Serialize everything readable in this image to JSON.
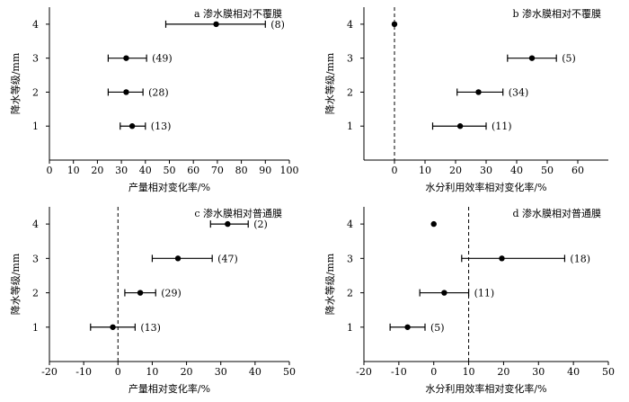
{
  "chart_data": [
    {
      "id": "a",
      "type": "scatter",
      "title": "a  渗水膜相对不覆膜",
      "xlabel": "产量相对变化率/%",
      "ylabel": "降水等级/mm",
      "xlim": [
        0,
        100
      ],
      "xticks": [
        0,
        10,
        20,
        30,
        40,
        50,
        60,
        70,
        80,
        90,
        100
      ],
      "ylim": [
        0,
        4.5
      ],
      "yticks": [
        1,
        2,
        3,
        4
      ],
      "reference_line": null,
      "points": [
        {
          "y": 4,
          "x": 69.5,
          "lo": 48.5,
          "hi": 90.0,
          "label": "(8)"
        },
        {
          "y": 3,
          "x": 32.0,
          "lo": 24.5,
          "hi": 40.5,
          "label": "(49)"
        },
        {
          "y": 2,
          "x": 32.0,
          "lo": 24.5,
          "hi": 39.0,
          "label": "(28)"
        },
        {
          "y": 1,
          "x": 34.5,
          "lo": 29.5,
          "hi": 40.0,
          "label": "(13)"
        }
      ]
    },
    {
      "id": "b",
      "type": "scatter",
      "title": "b  渗水膜相对不覆膜",
      "xlabel": "水分利用效率相对变化率/%",
      "ylabel": "降水等级/mm",
      "xlim": [
        -10,
        70
      ],
      "xticks": [
        0,
        10,
        20,
        30,
        40,
        50,
        60
      ],
      "ylim": [
        0,
        4.5
      ],
      "yticks": [
        1,
        2,
        3,
        4
      ],
      "reference_line": 0,
      "points": [
        {
          "y": 4,
          "x": 0.0,
          "lo": 0.0,
          "hi": 0.0,
          "label": ""
        },
        {
          "y": 3,
          "x": 45.0,
          "lo": 37.0,
          "hi": 53.0,
          "label": "(5)"
        },
        {
          "y": 2,
          "x": 27.5,
          "lo": 20.5,
          "hi": 35.5,
          "label": "(34)"
        },
        {
          "y": 1,
          "x": 21.5,
          "lo": 12.5,
          "hi": 30.0,
          "label": "(11)"
        }
      ]
    },
    {
      "id": "c",
      "type": "scatter",
      "title": "c  渗水膜相对普通膜",
      "xlabel": "产量相对变化率/%",
      "ylabel": "降水等级/mm",
      "xlim": [
        -20,
        50
      ],
      "xticks": [
        -20,
        -10,
        0,
        10,
        20,
        30,
        40,
        50
      ],
      "ylim": [
        0,
        4.5
      ],
      "yticks": [
        1,
        2,
        3,
        4
      ],
      "reference_line": 0,
      "points": [
        {
          "y": 4,
          "x": 32.0,
          "lo": 27.0,
          "hi": 38.0,
          "label": "(2)"
        },
        {
          "y": 3,
          "x": 17.5,
          "lo": 10.0,
          "hi": 27.5,
          "label": "(47)"
        },
        {
          "y": 2,
          "x": 6.5,
          "lo": 2.0,
          "hi": 11.0,
          "label": "(29)"
        },
        {
          "y": 1,
          "x": -1.5,
          "lo": -8.0,
          "hi": 5.0,
          "label": "(13)"
        }
      ]
    },
    {
      "id": "d",
      "type": "scatter",
      "title": "d  渗水膜相对普通膜",
      "xlabel": "水分利用效率相对变化率/%",
      "ylabel": "降水等级/mm",
      "xlim": [
        -20,
        50
      ],
      "xticks": [
        -20,
        -10,
        0,
        10,
        20,
        30,
        40,
        50
      ],
      "ylim": [
        0,
        4.5
      ],
      "yticks": [
        1,
        2,
        3,
        4
      ],
      "reference_line": 10,
      "points": [
        {
          "y": 4,
          "x": 0.0,
          "lo": 0.0,
          "hi": 0.0,
          "label": ""
        },
        {
          "y": 3,
          "x": 19.5,
          "lo": 8.0,
          "hi": 37.5,
          "label": "(18)"
        },
        {
          "y": 2,
          "x": 3.0,
          "lo": -4.0,
          "hi": 10.0,
          "label": "(11)"
        },
        {
          "y": 1,
          "x": -7.5,
          "lo": -12.5,
          "hi": -2.5,
          "label": "(5)"
        }
      ]
    }
  ]
}
